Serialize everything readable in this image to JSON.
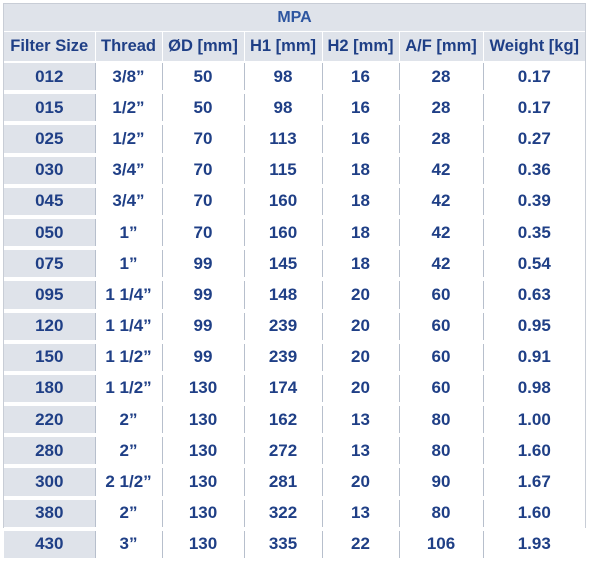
{
  "title": "MPA",
  "columns": [
    "Filter Size",
    "Thread",
    "ØD [mm]",
    "H1 [mm]",
    "H2 [mm]",
    "A/F [mm]",
    "Weight [kg]"
  ],
  "rows": [
    [
      "012",
      "3/8”",
      "50",
      "98",
      "16",
      "28",
      "0.17"
    ],
    [
      "015",
      "1/2”",
      "50",
      "98",
      "16",
      "28",
      "0.17"
    ],
    [
      "025",
      "1/2”",
      "70",
      "113",
      "16",
      "28",
      "0.27"
    ],
    [
      "030",
      "3/4”",
      "70",
      "115",
      "18",
      "42",
      "0.36"
    ],
    [
      "045",
      "3/4”",
      "70",
      "160",
      "18",
      "42",
      "0.39"
    ],
    [
      "050",
      "1”",
      "70",
      "160",
      "18",
      "42",
      "0.35"
    ],
    [
      "075",
      "1”",
      "99",
      "145",
      "18",
      "42",
      "0.54"
    ],
    [
      "095",
      "1 1/4”",
      "99",
      "148",
      "20",
      "60",
      "0.63"
    ],
    [
      "120",
      "1 1/4”",
      "99",
      "239",
      "20",
      "60",
      "0.95"
    ],
    [
      "150",
      "1 1/2”",
      "99",
      "239",
      "20",
      "60",
      "0.91"
    ],
    [
      "180",
      "1 1/2”",
      "130",
      "174",
      "20",
      "60",
      "0.98"
    ],
    [
      "220",
      "2”",
      "130",
      "162",
      "13",
      "80",
      "1.00"
    ],
    [
      "280",
      "2”",
      "130",
      "272",
      "13",
      "80",
      "1.60"
    ],
    [
      "300",
      "2 1/2”",
      "130",
      "281",
      "20",
      "90",
      "1.67"
    ],
    [
      "380",
      "2”",
      "130",
      "322",
      "13",
      "80",
      "1.60"
    ],
    [
      "430",
      "3”",
      "130",
      "335",
      "22",
      "106",
      "1.93"
    ]
  ]
}
